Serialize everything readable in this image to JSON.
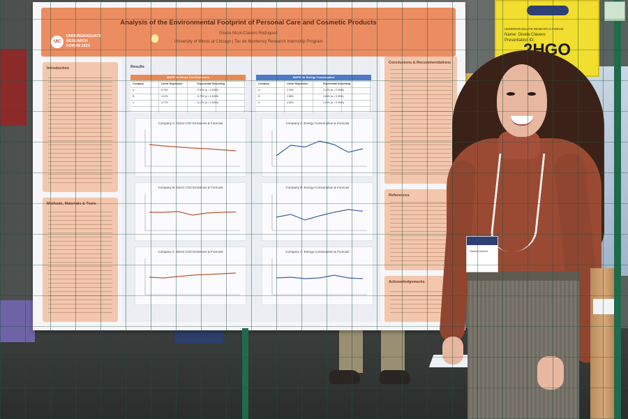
{
  "poster": {
    "title": "Analysis of the Environmental Footprint of Personal Care and Cosmetic Products",
    "author": "Gisela Nicol-Clavero Rodriguez",
    "affiliation": "University of Illinois at Chicago | Tec de Monterrey Research Internship Program",
    "forum_logo_text": "UNDERGRADUATE RESEARCH FORUM 2023",
    "forum_logo_mark": "UIC",
    "sections": {
      "introduction": "Introduction",
      "methods": "Methods, Materials & Tools",
      "results": "Results",
      "conclusions": "Conclusions & Recommendations",
      "references": "References",
      "acknowledgements": "Acknowledgements"
    },
    "tables": [
      {
        "title": "MAPE for Direct CO2 Emissions",
        "header_color": "#e98a55",
        "columns": [
          "Company",
          "Linear Regression",
          "Exponential Smoothing"
        ],
        "rows": [
          [
            "A",
            "8.79%",
            "9.30% (a = 0.9999)"
          ],
          [
            "B",
            "4.02%",
            "6.75% (a = 0.9999)"
          ],
          [
            "C",
            "4.77%",
            "5.12% (a = 0.9999)"
          ]
        ]
      },
      {
        "title": "MAPE for Energy Consumption",
        "header_color": "#4e79c7",
        "columns": [
          "Company",
          "Linear Regression",
          "Exponential Smoothing"
        ],
        "rows": [
          [
            "A",
            "2.33%",
            "3.42% (a = 0.9999)"
          ],
          [
            "B",
            "2.88%",
            "3.88% (a = 0.9931)"
          ],
          [
            "C",
            "4.55%",
            "3.22% (a = 0.9999)"
          ]
        ]
      }
    ],
    "charts": [
      {
        "title": "Company A: Direct CO2 Emissions & Forecast",
        "series": [
          62,
          58,
          55,
          52,
          50,
          47,
          44
        ]
      },
      {
        "title": "Company A: Energy Consumption & Forecast",
        "series": [
          30,
          60,
          55,
          72,
          62,
          40,
          50
        ]
      },
      {
        "title": "Company B: Direct CO2 Emissions & Forecast",
        "series": [
          52,
          52,
          54,
          44,
          50,
          52,
          53
        ]
      },
      {
        "title": "Company B: Energy Consumption & Forecast",
        "series": [
          38,
          46,
          30,
          42,
          52,
          60,
          55
        ]
      },
      {
        "title": "Company C: Direct CO2 Emissions & Forecast",
        "series": [
          50,
          48,
          52,
          56,
          58,
          60,
          62
        ]
      },
      {
        "title": "Company C: Energy Consumption & Forecast",
        "series": [
          48,
          50,
          46,
          48,
          56,
          48,
          46
        ]
      }
    ]
  },
  "sign": {
    "header": "UNDERGRADUATE RESEARCH FORUM",
    "name_line": "Name: Gisela Clavero",
    "id_line": "Presentation ID:",
    "code": "2HGO"
  },
  "badge": {
    "name": "Gisela Clavero"
  },
  "colors": {
    "poster_header": "#ec8d61",
    "side_boxes": "#f3c7ad",
    "sign": "#f2de2e",
    "fence": "#1f6b4c",
    "sweater": "#9a4a33"
  }
}
